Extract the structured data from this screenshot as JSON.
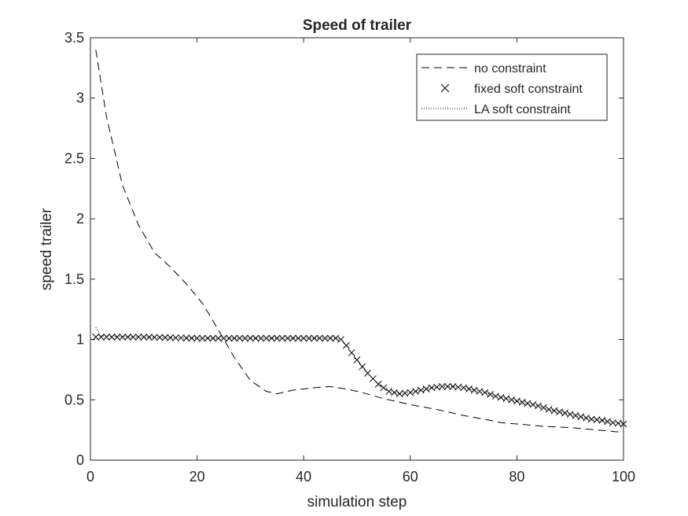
{
  "chart_data": {
    "type": "line",
    "title": "Speed of trailer",
    "xlabel": "simulation step",
    "ylabel": "speed trailer",
    "xlim": [
      0,
      100
    ],
    "ylim": [
      0,
      3.5
    ],
    "xticks": [
      0,
      20,
      40,
      60,
      80,
      100
    ],
    "xtick_labels": [
      "0",
      "20",
      "40",
      "60",
      "80",
      "100"
    ],
    "yticks": [
      0,
      0.5,
      1,
      1.5,
      2,
      2.5,
      3,
      3.5
    ],
    "ytick_labels": [
      "0",
      "0.5",
      "1",
      "1.5",
      "2",
      "2.5",
      "3",
      "3.5"
    ],
    "grid": false,
    "legend_position": "top-right",
    "series": [
      {
        "name": "no constraint",
        "style": "dashed",
        "color": "#000000",
        "x": [
          1,
          3,
          6,
          9,
          12,
          15,
          18,
          21,
          24,
          27,
          30,
          33,
          35,
          38,
          42,
          45,
          48,
          51,
          55,
          60,
          65,
          70,
          75,
          77,
          80,
          85,
          90,
          95,
          100
        ],
        "y": [
          3.4,
          2.85,
          2.28,
          1.95,
          1.72,
          1.6,
          1.46,
          1.3,
          1.08,
          0.85,
          0.66,
          0.57,
          0.55,
          0.58,
          0.6,
          0.61,
          0.59,
          0.56,
          0.51,
          0.46,
          0.42,
          0.37,
          0.33,
          0.31,
          0.3,
          0.28,
          0.27,
          0.25,
          0.23
        ]
      },
      {
        "name": "fixed soft constraint",
        "style": "x-markers",
        "color": "#000000",
        "x": [
          1,
          10,
          20,
          30,
          40,
          46,
          47,
          48,
          50,
          52,
          54,
          56,
          58,
          60,
          62,
          64,
          66,
          68,
          70,
          72,
          74,
          76,
          78,
          80,
          82,
          84,
          86,
          88,
          90,
          92,
          94,
          96,
          98,
          100
        ],
        "y": [
          1.02,
          1.02,
          1.01,
          1.01,
          1.01,
          1.01,
          1.0,
          0.95,
          0.83,
          0.72,
          0.63,
          0.57,
          0.55,
          0.56,
          0.58,
          0.6,
          0.61,
          0.61,
          0.6,
          0.58,
          0.56,
          0.53,
          0.51,
          0.49,
          0.47,
          0.45,
          0.42,
          0.4,
          0.38,
          0.36,
          0.34,
          0.33,
          0.31,
          0.3
        ]
      },
      {
        "name": "LA soft constraint",
        "style": "dotted",
        "color": "#000000",
        "x": [
          1,
          2,
          10,
          20,
          30,
          40,
          46,
          47,
          48,
          50,
          52,
          54,
          56,
          58,
          60,
          62,
          64,
          66,
          68,
          70,
          72,
          74,
          76,
          78,
          80,
          82,
          84,
          86,
          88,
          90,
          92,
          94,
          96,
          98,
          100
        ],
        "y": [
          1.1,
          1.03,
          1.02,
          1.01,
          1.01,
          1.01,
          1.01,
          1.0,
          0.95,
          0.83,
          0.72,
          0.63,
          0.57,
          0.55,
          0.56,
          0.58,
          0.6,
          0.61,
          0.61,
          0.6,
          0.58,
          0.56,
          0.53,
          0.51,
          0.49,
          0.47,
          0.45,
          0.42,
          0.4,
          0.38,
          0.36,
          0.34,
          0.33,
          0.31,
          0.3
        ]
      }
    ]
  }
}
